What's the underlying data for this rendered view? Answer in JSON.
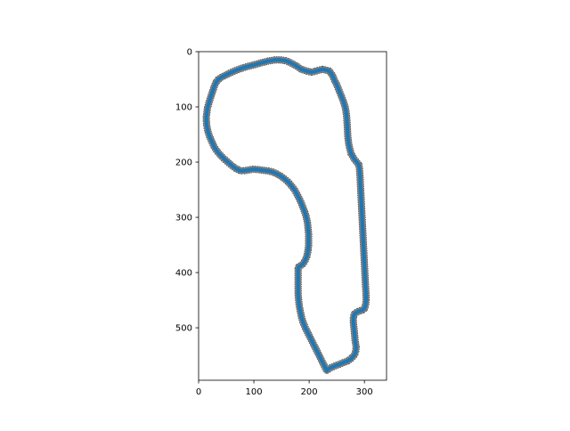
{
  "chart_data": {
    "type": "line",
    "title": "",
    "xlabel": "",
    "ylabel": "",
    "xlim": [
      0,
      340
    ],
    "ylim": [
      595,
      0
    ],
    "y_inverted": true,
    "aspect": "equal",
    "grid": false,
    "legend": "none",
    "x_ticks": [
      0,
      100,
      200,
      300
    ],
    "y_ticks": [
      0,
      100,
      200,
      300,
      400,
      500
    ],
    "colors": {
      "track": "#1f77b4",
      "noise": "#000000",
      "noise_fill": "#808080",
      "axes": "#000000",
      "background": "#ffffff"
    },
    "series": [
      {
        "x": [
          32,
          36,
          42,
          50,
          58,
          70,
          84,
          100,
          114,
          126,
          138,
          148,
          156,
          162,
          168,
          174,
          180,
          186,
          192,
          198,
          204,
          210,
          216,
          224,
          230,
          236,
          240,
          243,
          246,
          250,
          254,
          258,
          262,
          265,
          267,
          268,
          269,
          270,
          272,
          276,
          282,
          286,
          290,
          291,
          292,
          293,
          294,
          295,
          296,
          297,
          298,
          299,
          300,
          301,
          302,
          303,
          303,
          302,
          300,
          296,
          290,
          286,
          282,
          280,
          280,
          281,
          282,
          283,
          285,
          284,
          281,
          277,
          270,
          262,
          255,
          247,
          240,
          234,
          232,
          228,
          223,
          218,
          213,
          208,
          203,
          198,
          193,
          189,
          186,
          184,
          182,
          181,
          180,
          180,
          180,
          180,
          180,
          180,
          181,
          184,
          188,
          192,
          196,
          198,
          199,
          199,
          199,
          198,
          197,
          195,
          192,
          188,
          184,
          179,
          174,
          168,
          162,
          155,
          148,
          141,
          134,
          126,
          118,
          111,
          104,
          98,
          92,
          86,
          80,
          74,
          68,
          61,
          54,
          46,
          39,
          33,
          28,
          24,
          20,
          17,
          15,
          14,
          14,
          15,
          16,
          18,
          20,
          22,
          24,
          26,
          28,
          30,
          32
        ],
        "y": [
          55,
          50,
          46,
          42,
          38,
          33,
          28,
          24,
          20,
          17,
          15,
          15,
          16,
          18,
          21,
          24,
          28,
          32,
          34,
          36,
          37,
          36,
          34,
          32,
          33,
          35,
          39,
          45,
          52,
          60,
          70,
          80,
          90,
          100,
          110,
          120,
          135,
          155,
          170,
          185,
          195,
          200,
          205,
          212,
          225,
          245,
          265,
          285,
          305,
          325,
          345,
          365,
          385,
          405,
          425,
          440,
          450,
          460,
          465,
          468,
          470,
          472,
          475,
          480,
          490,
          500,
          510,
          522,
          535,
          545,
          550,
          555,
          560,
          563,
          566,
          569,
          572,
          575,
          578,
          570,
          560,
          550,
          540,
          530,
          520,
          510,
          500,
          490,
          480,
          470,
          460,
          450,
          440,
          430,
          420,
          410,
          400,
          393,
          390,
          388,
          385,
          380,
          370,
          360,
          350,
          340,
          330,
          320,
          310,
          300,
          290,
          280,
          270,
          260,
          251,
          243,
          236,
          230,
          225,
          221,
          218,
          216,
          215,
          214,
          213,
          213,
          214,
          215,
          216,
          215,
          212,
          207,
          201,
          194,
          187,
          180,
          172,
          163,
          154,
          145,
          136,
          127,
          118,
          110,
          102,
          95,
          88,
          82,
          76,
          70,
          64,
          59,
          55
        ]
      }
    ]
  }
}
